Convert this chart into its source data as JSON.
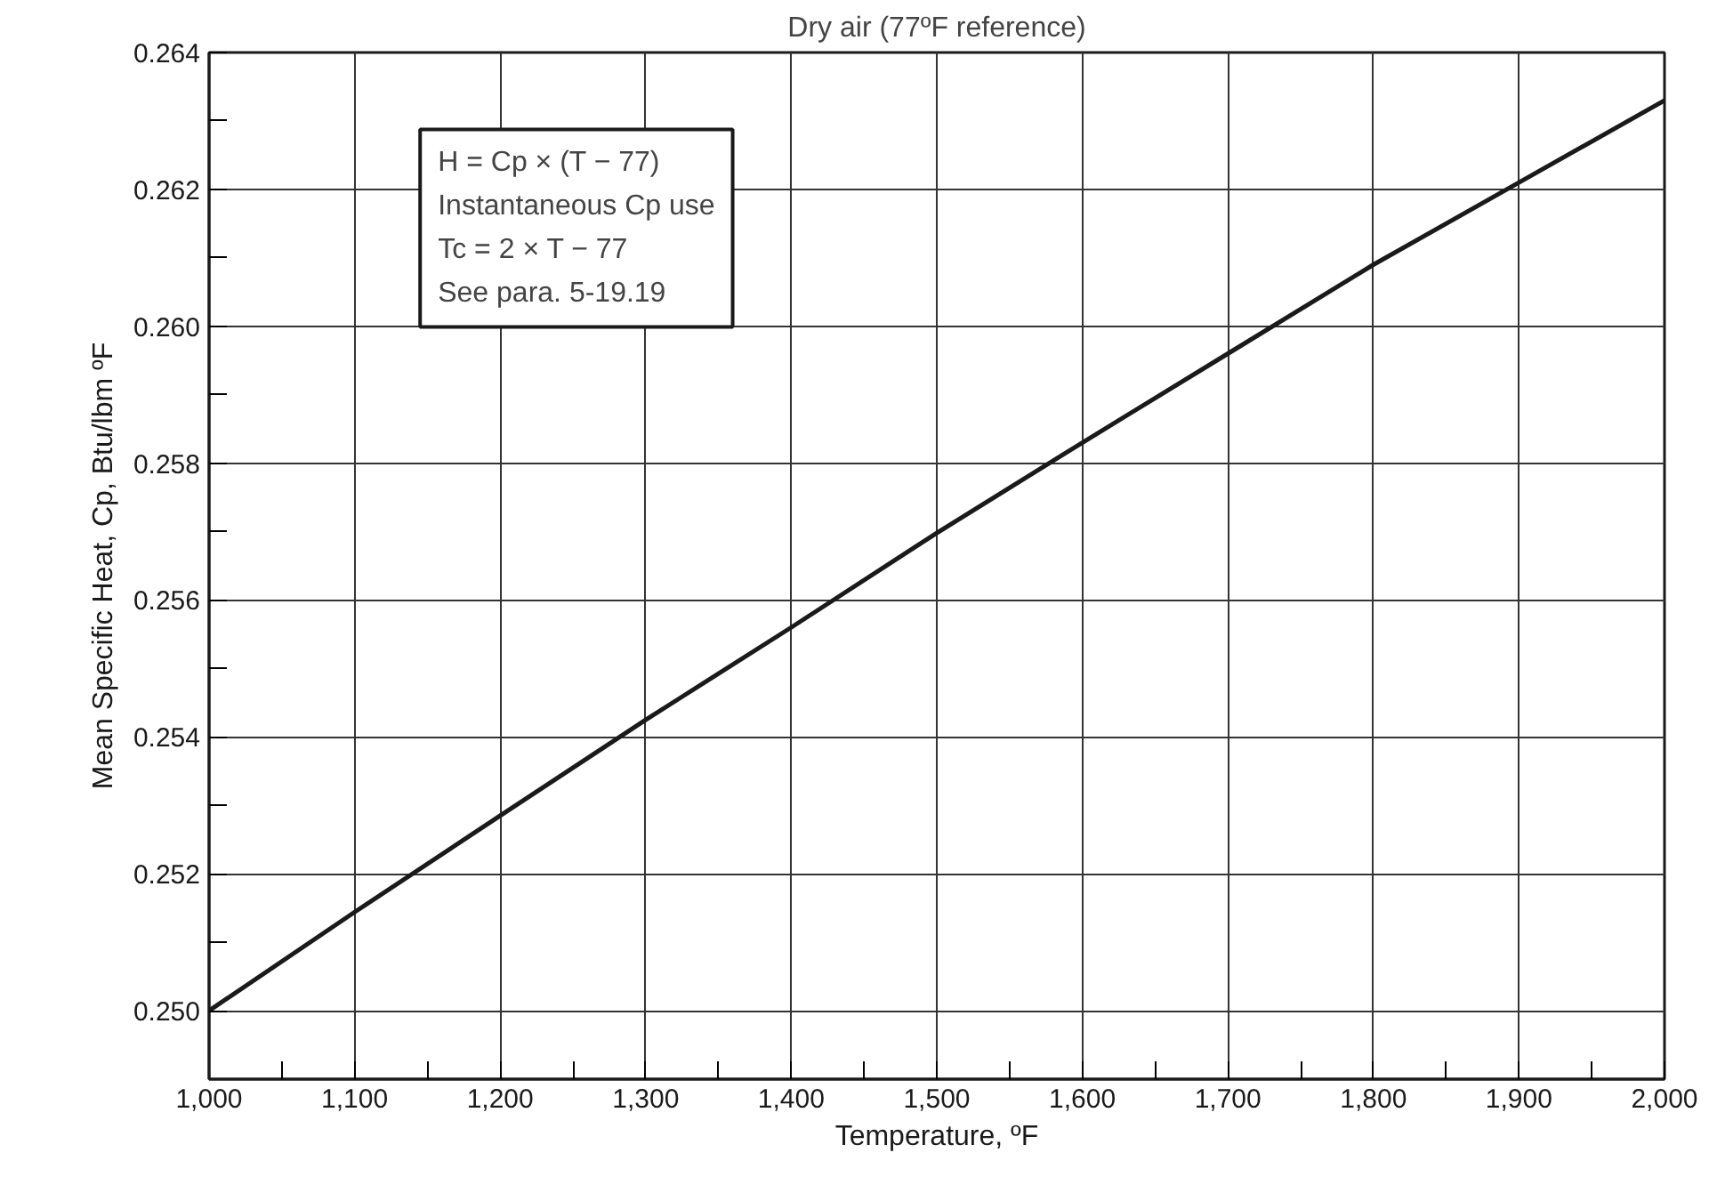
{
  "chart_data": {
    "type": "line",
    "title": "Dry air (77ºF reference)",
    "xlabel": "Temperature, ºF",
    "ylabel": "Mean Specific Heat, Cp, Btu/lbm ºF",
    "x": [
      1000,
      1100,
      1200,
      1300,
      1400,
      1500,
      1600,
      1700,
      1800,
      1900,
      2000
    ],
    "series": [
      {
        "color": "#1a1a1a",
        "values": [
          0.25,
          0.25144,
          0.25285,
          0.25425,
          0.2556,
          0.25698,
          0.2583,
          0.2596,
          0.2609,
          0.2621,
          0.2633
        ]
      }
    ],
    "xlim": [
      1000,
      2000
    ],
    "ylim": [
      0.249,
      0.264
    ],
    "xticks": [
      {
        "value": 1000,
        "label": "1,000"
      },
      {
        "value": 1050,
        "label": null
      },
      {
        "value": 1100,
        "label": "1,100"
      },
      {
        "value": 1150,
        "label": null
      },
      {
        "value": 1200,
        "label": "1,200"
      },
      {
        "value": 1250,
        "label": null
      },
      {
        "value": 1300,
        "label": "1,300"
      },
      {
        "value": 1350,
        "label": null
      },
      {
        "value": 1400,
        "label": "1,400"
      },
      {
        "value": 1450,
        "label": null
      },
      {
        "value": 1500,
        "label": "1,500"
      },
      {
        "value": 1550,
        "label": null
      },
      {
        "value": 1600,
        "label": "1,600"
      },
      {
        "value": 1650,
        "label": null
      },
      {
        "value": 1700,
        "label": "1,700"
      },
      {
        "value": 1750,
        "label": null
      },
      {
        "value": 1800,
        "label": "1,800"
      },
      {
        "value": 1850,
        "label": null
      },
      {
        "value": 1900,
        "label": "1,900"
      },
      {
        "value": 1950,
        "label": null
      },
      {
        "value": 2000,
        "label": "2,000"
      }
    ],
    "yticks": [
      {
        "value": 0.25,
        "label": "0.250"
      },
      {
        "value": 0.251,
        "label": null
      },
      {
        "value": 0.252,
        "label": "0.252"
      },
      {
        "value": 0.253,
        "label": null
      },
      {
        "value": 0.254,
        "label": "0.254"
      },
      {
        "value": 0.255,
        "label": null
      },
      {
        "value": 0.256,
        "label": "0.256"
      },
      {
        "value": 0.257,
        "label": null
      },
      {
        "value": 0.258,
        "label": "0.258"
      },
      {
        "value": 0.259,
        "label": null
      },
      {
        "value": 0.26,
        "label": "0.260"
      },
      {
        "value": 0.261,
        "label": null
      },
      {
        "value": 0.262,
        "label": "0.262"
      },
      {
        "value": 0.263,
        "label": null
      },
      {
        "value": 0.264,
        "label": "0.264"
      }
    ],
    "annotations": [
      "H = Cp × (T − 77)",
      "Instantaneous Cp use",
      "Tc = 2 × T − 77",
      "See para. 5-19.19"
    ],
    "grid": true,
    "marker": "none",
    "line_style": "solid"
  }
}
